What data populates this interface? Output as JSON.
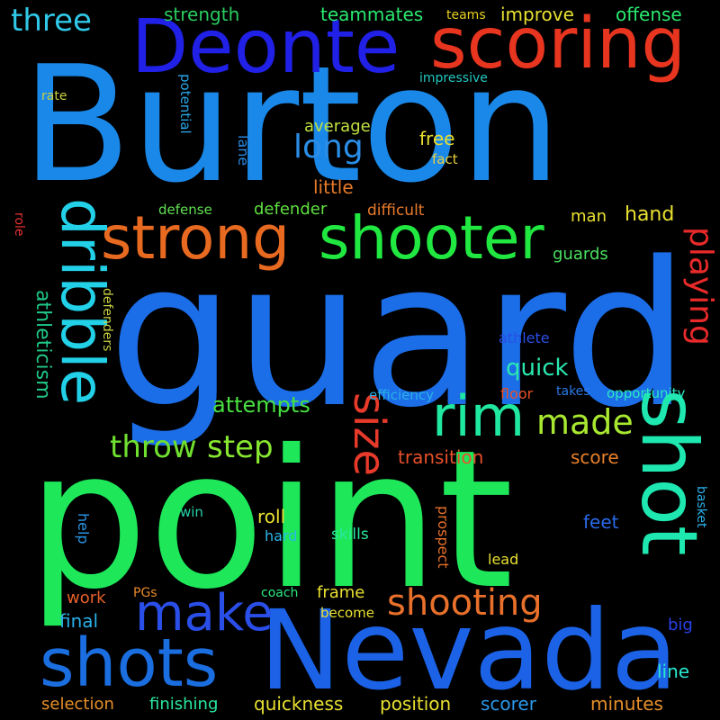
{
  "background": "#000000",
  "words": [
    {
      "text": "Burton",
      "color": "#1a88e8"
    },
    {
      "text": "guard",
      "color": "#1b6de8"
    },
    {
      "text": "point",
      "color": "#1ee85a"
    },
    {
      "text": "Nevada",
      "color": "#1b62e6"
    },
    {
      "text": "Deonte",
      "color": "#2020e6"
    },
    {
      "text": "scoring",
      "color": "#e83520"
    },
    {
      "text": "shot",
      "color": "#1ee8b0"
    },
    {
      "text": "shooter",
      "color": "#20e840"
    },
    {
      "text": "strong",
      "color": "#e86a20"
    },
    {
      "text": "dribble",
      "color": "#22d0e8"
    },
    {
      "text": "shots",
      "color": "#1a6ee0"
    },
    {
      "text": "rim",
      "color": "#20e8a0"
    },
    {
      "text": "make",
      "color": "#2a4ee8"
    },
    {
      "text": "size",
      "color": "#e83a2a"
    },
    {
      "text": "playing",
      "color": "#e82a2a"
    },
    {
      "text": "shooting",
      "color": "#e8702a"
    },
    {
      "text": "made",
      "color": "#a8e830"
    },
    {
      "text": "throw",
      "color": "#70e030"
    },
    {
      "text": "step",
      "color": "#88e830"
    },
    {
      "text": "three",
      "color": "#30c8e8"
    },
    {
      "text": "long",
      "color": "#2a8ee8"
    },
    {
      "text": "quick",
      "color": "#2ae8b0"
    },
    {
      "text": "attempts",
      "color": "#48e040"
    },
    {
      "text": "athleticism",
      "color": "#20c888"
    },
    {
      "text": "strength",
      "color": "#2acc60"
    },
    {
      "text": "teammates",
      "color": "#2ae870"
    },
    {
      "text": "teams",
      "color": "#e8d020"
    },
    {
      "text": "improve",
      "color": "#e8e030"
    },
    {
      "text": "offense",
      "color": "#2ae870"
    },
    {
      "text": "impressive",
      "color": "#22c8c0"
    },
    {
      "text": "rate",
      "color": "#c8d040"
    },
    {
      "text": "potential",
      "color": "#2aa8e8"
    },
    {
      "text": "lane",
      "color": "#2a88e0"
    },
    {
      "text": "average",
      "color": "#c0e040"
    },
    {
      "text": "free",
      "color": "#e8e030"
    },
    {
      "text": "fact",
      "color": "#e8d040"
    },
    {
      "text": "little",
      "color": "#e87a2a"
    },
    {
      "text": "defense",
      "color": "#60e050"
    },
    {
      "text": "defender",
      "color": "#60e040"
    },
    {
      "text": "difficult",
      "color": "#e87a2a"
    },
    {
      "text": "man",
      "color": "#e8e030"
    },
    {
      "text": "hand",
      "color": "#e8e030"
    },
    {
      "text": "guards",
      "color": "#48e060"
    },
    {
      "text": "role",
      "color": "#e83030"
    },
    {
      "text": "defenders",
      "color": "#c8d040"
    },
    {
      "text": "athlete",
      "color": "#2a4ee8"
    },
    {
      "text": "efficiency",
      "color": "#2ab0e8"
    },
    {
      "text": "floor",
      "color": "#e8502a"
    },
    {
      "text": "takes",
      "color": "#2a7ae8"
    },
    {
      "text": "opportunity",
      "color": "#2ae8c0"
    },
    {
      "text": "transition",
      "color": "#e8502a"
    },
    {
      "text": "score",
      "color": "#e8802a"
    },
    {
      "text": "basket",
      "color": "#2ab0e8"
    },
    {
      "text": "win",
      "color": "#28d0a8"
    },
    {
      "text": "roll",
      "color": "#e8e030"
    },
    {
      "text": "feet",
      "color": "#2a6ae8"
    },
    {
      "text": "help",
      "color": "#2a98e8"
    },
    {
      "text": "hard",
      "color": "#2ab8e8"
    },
    {
      "text": "skills",
      "color": "#2ae8a0"
    },
    {
      "text": "prospect",
      "color": "#e8702a"
    },
    {
      "text": "lead",
      "color": "#e8e030"
    },
    {
      "text": "work",
      "color": "#e8602a"
    },
    {
      "text": "PGs",
      "color": "#e88a2a"
    },
    {
      "text": "coach",
      "color": "#2ae880"
    },
    {
      "text": "frame",
      "color": "#e8e030"
    },
    {
      "text": "become",
      "color": "#e8e030"
    },
    {
      "text": "final",
      "color": "#2ab0e8"
    },
    {
      "text": "big",
      "color": "#2a40e8"
    },
    {
      "text": "line",
      "color": "#2ae8d0"
    },
    {
      "text": "selection",
      "color": "#e8902a"
    },
    {
      "text": "finishing",
      "color": "#2ae8a0"
    },
    {
      "text": "quickness",
      "color": "#e8e030"
    },
    {
      "text": "position",
      "color": "#e8e030"
    },
    {
      "text": "scorer",
      "color": "#2a98e8"
    },
    {
      "text": "minutes",
      "color": "#e8902a"
    }
  ]
}
